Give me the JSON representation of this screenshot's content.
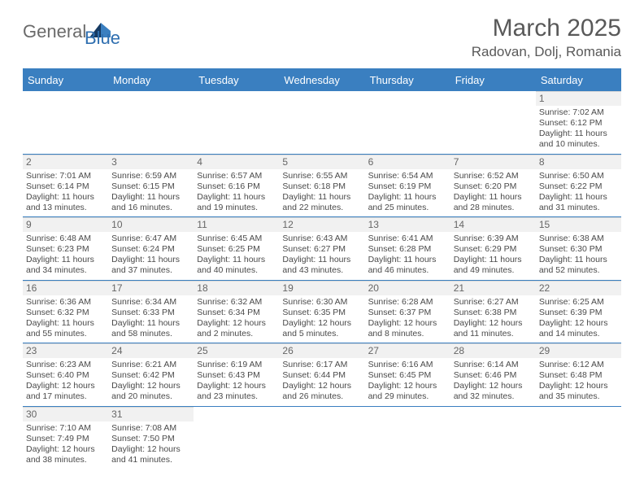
{
  "brand": {
    "general": "General",
    "blue": "Blue"
  },
  "title": "March 2025",
  "location": "Radovan, Dolj, Romania",
  "colors": {
    "header_blue": "#3a7fc0",
    "text_gray": "#595959",
    "cell_gray_bg": "#f1f1f1",
    "divider": "#d9d9d9"
  },
  "weekdays": [
    "Sunday",
    "Monday",
    "Tuesday",
    "Wednesday",
    "Thursday",
    "Friday",
    "Saturday"
  ],
  "weeks": [
    [
      null,
      null,
      null,
      null,
      null,
      null,
      {
        "n": "1",
        "sr": "Sunrise: 7:02 AM",
        "ss": "Sunset: 6:12 PM",
        "d1": "Daylight: 11 hours",
        "d2": "and 10 minutes."
      }
    ],
    [
      {
        "n": "2",
        "sr": "Sunrise: 7:01 AM",
        "ss": "Sunset: 6:14 PM",
        "d1": "Daylight: 11 hours",
        "d2": "and 13 minutes."
      },
      {
        "n": "3",
        "sr": "Sunrise: 6:59 AM",
        "ss": "Sunset: 6:15 PM",
        "d1": "Daylight: 11 hours",
        "d2": "and 16 minutes."
      },
      {
        "n": "4",
        "sr": "Sunrise: 6:57 AM",
        "ss": "Sunset: 6:16 PM",
        "d1": "Daylight: 11 hours",
        "d2": "and 19 minutes."
      },
      {
        "n": "5",
        "sr": "Sunrise: 6:55 AM",
        "ss": "Sunset: 6:18 PM",
        "d1": "Daylight: 11 hours",
        "d2": "and 22 minutes."
      },
      {
        "n": "6",
        "sr": "Sunrise: 6:54 AM",
        "ss": "Sunset: 6:19 PM",
        "d1": "Daylight: 11 hours",
        "d2": "and 25 minutes."
      },
      {
        "n": "7",
        "sr": "Sunrise: 6:52 AM",
        "ss": "Sunset: 6:20 PM",
        "d1": "Daylight: 11 hours",
        "d2": "and 28 minutes."
      },
      {
        "n": "8",
        "sr": "Sunrise: 6:50 AM",
        "ss": "Sunset: 6:22 PM",
        "d1": "Daylight: 11 hours",
        "d2": "and 31 minutes."
      }
    ],
    [
      {
        "n": "9",
        "sr": "Sunrise: 6:48 AM",
        "ss": "Sunset: 6:23 PM",
        "d1": "Daylight: 11 hours",
        "d2": "and 34 minutes."
      },
      {
        "n": "10",
        "sr": "Sunrise: 6:47 AM",
        "ss": "Sunset: 6:24 PM",
        "d1": "Daylight: 11 hours",
        "d2": "and 37 minutes."
      },
      {
        "n": "11",
        "sr": "Sunrise: 6:45 AM",
        "ss": "Sunset: 6:25 PM",
        "d1": "Daylight: 11 hours",
        "d2": "and 40 minutes."
      },
      {
        "n": "12",
        "sr": "Sunrise: 6:43 AM",
        "ss": "Sunset: 6:27 PM",
        "d1": "Daylight: 11 hours",
        "d2": "and 43 minutes."
      },
      {
        "n": "13",
        "sr": "Sunrise: 6:41 AM",
        "ss": "Sunset: 6:28 PM",
        "d1": "Daylight: 11 hours",
        "d2": "and 46 minutes."
      },
      {
        "n": "14",
        "sr": "Sunrise: 6:39 AM",
        "ss": "Sunset: 6:29 PM",
        "d1": "Daylight: 11 hours",
        "d2": "and 49 minutes."
      },
      {
        "n": "15",
        "sr": "Sunrise: 6:38 AM",
        "ss": "Sunset: 6:30 PM",
        "d1": "Daylight: 11 hours",
        "d2": "and 52 minutes."
      }
    ],
    [
      {
        "n": "16",
        "sr": "Sunrise: 6:36 AM",
        "ss": "Sunset: 6:32 PM",
        "d1": "Daylight: 11 hours",
        "d2": "and 55 minutes."
      },
      {
        "n": "17",
        "sr": "Sunrise: 6:34 AM",
        "ss": "Sunset: 6:33 PM",
        "d1": "Daylight: 11 hours",
        "d2": "and 58 minutes."
      },
      {
        "n": "18",
        "sr": "Sunrise: 6:32 AM",
        "ss": "Sunset: 6:34 PM",
        "d1": "Daylight: 12 hours",
        "d2": "and 2 minutes."
      },
      {
        "n": "19",
        "sr": "Sunrise: 6:30 AM",
        "ss": "Sunset: 6:35 PM",
        "d1": "Daylight: 12 hours",
        "d2": "and 5 minutes."
      },
      {
        "n": "20",
        "sr": "Sunrise: 6:28 AM",
        "ss": "Sunset: 6:37 PM",
        "d1": "Daylight: 12 hours",
        "d2": "and 8 minutes."
      },
      {
        "n": "21",
        "sr": "Sunrise: 6:27 AM",
        "ss": "Sunset: 6:38 PM",
        "d1": "Daylight: 12 hours",
        "d2": "and 11 minutes."
      },
      {
        "n": "22",
        "sr": "Sunrise: 6:25 AM",
        "ss": "Sunset: 6:39 PM",
        "d1": "Daylight: 12 hours",
        "d2": "and 14 minutes."
      }
    ],
    [
      {
        "n": "23",
        "sr": "Sunrise: 6:23 AM",
        "ss": "Sunset: 6:40 PM",
        "d1": "Daylight: 12 hours",
        "d2": "and 17 minutes."
      },
      {
        "n": "24",
        "sr": "Sunrise: 6:21 AM",
        "ss": "Sunset: 6:42 PM",
        "d1": "Daylight: 12 hours",
        "d2": "and 20 minutes."
      },
      {
        "n": "25",
        "sr": "Sunrise: 6:19 AM",
        "ss": "Sunset: 6:43 PM",
        "d1": "Daylight: 12 hours",
        "d2": "and 23 minutes."
      },
      {
        "n": "26",
        "sr": "Sunrise: 6:17 AM",
        "ss": "Sunset: 6:44 PM",
        "d1": "Daylight: 12 hours",
        "d2": "and 26 minutes."
      },
      {
        "n": "27",
        "sr": "Sunrise: 6:16 AM",
        "ss": "Sunset: 6:45 PM",
        "d1": "Daylight: 12 hours",
        "d2": "and 29 minutes."
      },
      {
        "n": "28",
        "sr": "Sunrise: 6:14 AM",
        "ss": "Sunset: 6:46 PM",
        "d1": "Daylight: 12 hours",
        "d2": "and 32 minutes."
      },
      {
        "n": "29",
        "sr": "Sunrise: 6:12 AM",
        "ss": "Sunset: 6:48 PM",
        "d1": "Daylight: 12 hours",
        "d2": "and 35 minutes."
      }
    ],
    [
      {
        "n": "30",
        "sr": "Sunrise: 7:10 AM",
        "ss": "Sunset: 7:49 PM",
        "d1": "Daylight: 12 hours",
        "d2": "and 38 minutes."
      },
      {
        "n": "31",
        "sr": "Sunrise: 7:08 AM",
        "ss": "Sunset: 7:50 PM",
        "d1": "Daylight: 12 hours",
        "d2": "and 41 minutes."
      },
      null,
      null,
      null,
      null,
      null
    ]
  ]
}
